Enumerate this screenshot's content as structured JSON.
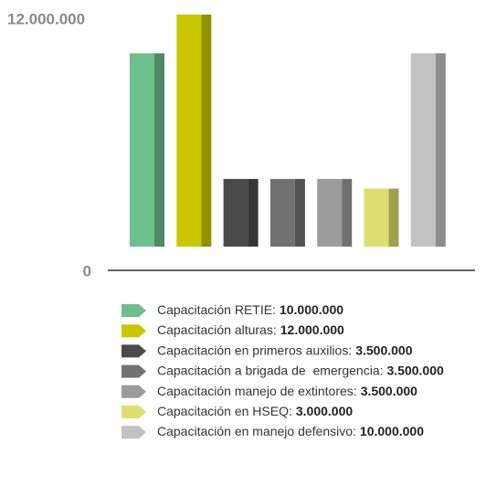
{
  "chart_data": {
    "type": "bar",
    "categories": [
      "Capacitación RETIE:",
      "Capacitación alturas:",
      "Capacitación en primeros auxilios:",
      "Capacitación a brigada de  emergencia:",
      "Capacitación manejo de extintores:",
      "Capacitación en HSEQ:",
      "Capacitación en manejo defensivo:"
    ],
    "values": [
      10000000,
      12000000,
      3500000,
      3500000,
      3500000,
      3000000,
      10000000
    ],
    "value_labels": [
      "10.000.000",
      "12.000.000",
      "3.500.000",
      "3.500.000",
      "3.500.000",
      "3.000.000",
      "10.000.000"
    ],
    "colors": [
      "#6dbf8c",
      "#c9c800",
      "#4a4a4a",
      "#727272",
      "#9b9b9b",
      "#dede70",
      "#c2c2c2"
    ],
    "ylim": [
      0,
      12000000
    ],
    "yticks": [
      0,
      {
        "value": 12000000,
        "label": "12.000.000"
      }
    ]
  }
}
